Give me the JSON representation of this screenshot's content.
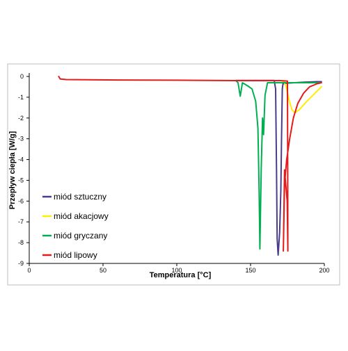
{
  "chart_data": {
    "type": "line",
    "title": "",
    "xlabel": "Temperatura [°C]",
    "ylabel": "Przepływ ciepła [W/g]",
    "xlim": [
      0,
      200
    ],
    "ylim": [
      -9,
      0
    ],
    "x_ticks": [
      "0",
      "50",
      "100",
      "150",
      "200"
    ],
    "y_ticks": [
      "0",
      "-1",
      "-2",
      "-3",
      "-4",
      "-5",
      "-6",
      "-7",
      "-8",
      "-9"
    ],
    "grid": false,
    "legend_position": "bottom-left",
    "series": [
      {
        "name": "miód sztuczny",
        "color": "#4b3b8a",
        "points": [
          [
            140,
            -0.19
          ],
          [
            162,
            -0.19
          ],
          [
            166,
            -0.19
          ],
          [
            167,
            -0.6
          ],
          [
            167.6,
            -4.5
          ],
          [
            168,
            -7.8
          ],
          [
            168.7,
            -8.6
          ],
          [
            169.7,
            -7.5
          ],
          [
            170.5,
            -5.5
          ],
          [
            171,
            -3
          ],
          [
            171.5,
            -0.6
          ],
          [
            172,
            -0.35
          ],
          [
            175,
            -0.32
          ],
          [
            185,
            -0.28
          ],
          [
            195,
            -0.25
          ],
          [
            198,
            -0.25
          ]
        ]
      },
      {
        "name": "miód akacjowy",
        "color": "#ffee00",
        "points": [
          [
            140,
            -0.2
          ],
          [
            168,
            -0.2
          ],
          [
            172,
            -0.2
          ],
          [
            174,
            -0.45
          ],
          [
            176,
            -1.1
          ],
          [
            178,
            -1.6
          ],
          [
            180,
            -1.75
          ],
          [
            183,
            -1.6
          ],
          [
            188,
            -1.2
          ],
          [
            193,
            -0.85
          ],
          [
            198,
            -0.5
          ]
        ]
      },
      {
        "name": "miód gryczany",
        "color": "#00b050",
        "points": [
          [
            140,
            -0.2
          ],
          [
            141.5,
            -0.3
          ],
          [
            143,
            -0.95
          ],
          [
            144.5,
            -0.3
          ],
          [
            148,
            -0.45
          ],
          [
            151,
            -0.6
          ],
          [
            153.5,
            -1.2
          ],
          [
            155,
            -2.5
          ],
          [
            155.8,
            -5.5
          ],
          [
            156.3,
            -8.3
          ],
          [
            157.2,
            -4.5
          ],
          [
            158.1,
            -2
          ],
          [
            158.8,
            -2.8
          ],
          [
            159.8,
            -0.9
          ],
          [
            161.5,
            -0.3
          ],
          [
            164,
            -0.3
          ],
          [
            175,
            -0.3
          ],
          [
            185,
            -0.3
          ],
          [
            198,
            -0.3
          ]
        ]
      },
      {
        "name": "miód lipowy",
        "color": "#e31b1b",
        "points": [
          [
            20,
            0
          ],
          [
            21,
            -0.12
          ],
          [
            25,
            -0.15
          ],
          [
            60,
            -0.17
          ],
          [
            100,
            -0.18
          ],
          [
            140,
            -0.2
          ],
          [
            170,
            -0.2
          ],
          [
            175,
            -0.22
          ],
          [
            175.2,
            -4.5
          ],
          [
            175.3,
            -8.4
          ],
          [
            174.8,
            -6
          ],
          [
            173,
            -4.5
          ],
          [
            172.2,
            -8.4
          ],
          [
            173,
            -5.2
          ],
          [
            174.5,
            -4
          ],
          [
            176.5,
            -3
          ],
          [
            179,
            -2
          ],
          [
            182,
            -1.3
          ],
          [
            186,
            -0.8
          ],
          [
            190,
            -0.5
          ],
          [
            195,
            -0.35
          ],
          [
            198,
            -0.3
          ]
        ]
      }
    ]
  }
}
